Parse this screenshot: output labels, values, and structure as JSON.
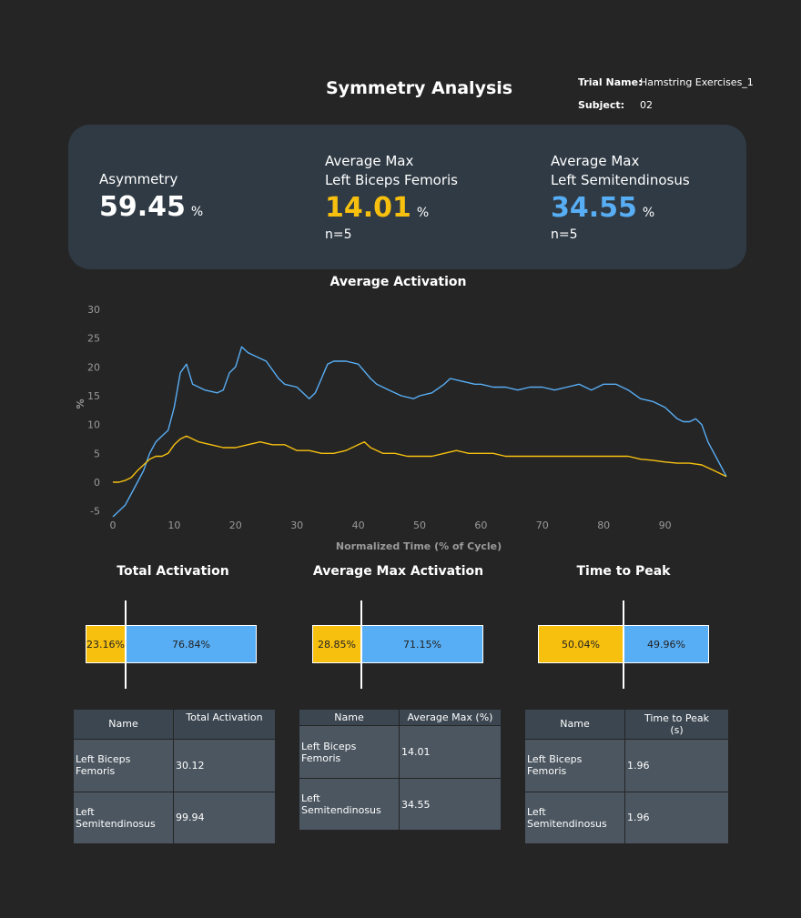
{
  "header": {
    "title": "Symmetry Analysis",
    "trial_label": "Trial Name:",
    "trial_value": "Hamstring Exercises_1",
    "subject_label": "Subject:",
    "subject_value": "02"
  },
  "summary": {
    "asymmetry": {
      "label": "Asymmetry",
      "value": "59.45",
      "unit": "%"
    },
    "left": {
      "label1": "Average Max",
      "label2": "Left Biceps Femoris",
      "value": "14.01",
      "unit": "%",
      "n": "n=5"
    },
    "right": {
      "label1": "Average Max",
      "label2": "Left Semitendinosus",
      "value": "34.55",
      "unit": "%",
      "n": "n=5"
    }
  },
  "colors": {
    "left": "#f7c00f",
    "right": "#58aef5"
  },
  "chart_data": {
    "type": "line",
    "title": "Average Activation",
    "xlabel": "Normalized Time (% of Cycle)",
    "ylabel": "%",
    "xlim": [
      0,
      100
    ],
    "ylim": [
      -6,
      30
    ],
    "xticks": [
      0,
      10,
      20,
      30,
      40,
      50,
      60,
      70,
      80,
      90
    ],
    "yticks": [
      -5,
      0,
      5,
      10,
      15,
      20,
      25,
      30
    ],
    "series": [
      {
        "name": "Left Semitendinosus",
        "color": "#58aef5",
        "x": [
          0,
          2,
          4,
          5,
          6,
          7,
          8,
          9,
          10,
          11,
          12,
          13,
          15,
          17,
          18,
          19,
          20,
          21,
          22,
          23,
          25,
          27,
          28,
          30,
          32,
          33,
          34,
          35,
          36,
          38,
          40,
          42,
          43,
          45,
          47,
          49,
          50,
          52,
          54,
          55,
          57,
          59,
          60,
          62,
          64,
          66,
          68,
          70,
          72,
          74,
          76,
          78,
          80,
          82,
          84,
          86,
          88,
          90,
          91,
          92,
          93,
          94,
          95,
          96,
          97,
          98,
          99,
          100
        ],
        "y": [
          -6,
          -4,
          0,
          2,
          5,
          7,
          8,
          9,
          13,
          19,
          20.5,
          17,
          16,
          15.5,
          16,
          19,
          20,
          23.5,
          22.5,
          22,
          21,
          18,
          17,
          16.5,
          14.5,
          15.5,
          18,
          20.5,
          21,
          21,
          20.5,
          18,
          17,
          16,
          15,
          14.5,
          15,
          15.5,
          17,
          18,
          17.5,
          17,
          17,
          16.5,
          16.5,
          16,
          16.5,
          16.5,
          16,
          16.5,
          17,
          16,
          17,
          17,
          16,
          14.5,
          14,
          13,
          12,
          11,
          10.5,
          10.5,
          11,
          10,
          7,
          5,
          3,
          1
        ]
      },
      {
        "name": "Left Biceps Femoris",
        "color": "#f7c00f",
        "x": [
          0,
          1,
          2,
          3,
          4,
          5,
          6,
          7,
          8,
          9,
          10,
          11,
          12,
          13,
          14,
          16,
          18,
          20,
          22,
          24,
          26,
          28,
          30,
          32,
          34,
          36,
          38,
          40,
          41,
          42,
          44,
          46,
          48,
          50,
          52,
          54,
          56,
          58,
          60,
          62,
          64,
          66,
          68,
          70,
          72,
          74,
          76,
          78,
          80,
          82,
          84,
          86,
          88,
          90,
          92,
          94,
          96,
          98,
          100
        ],
        "y": [
          0,
          0,
          0.3,
          0.8,
          2,
          3,
          4,
          4.5,
          4.5,
          5,
          6.5,
          7.5,
          8,
          7.5,
          7,
          6.5,
          6,
          6,
          6.5,
          7,
          6.5,
          6.5,
          5.5,
          5.5,
          5,
          5,
          5.5,
          6.5,
          7,
          6,
          5,
          5,
          4.5,
          4.5,
          4.5,
          5,
          5.5,
          5,
          5,
          5,
          4.5,
          4.5,
          4.5,
          4.5,
          4.5,
          4.5,
          4.5,
          4.5,
          4.5,
          4.5,
          4.5,
          4,
          3.8,
          3.5,
          3.3,
          3.3,
          3,
          2,
          1
        ]
      }
    ]
  },
  "total_activation": {
    "title": "Total Activation",
    "left_pct": 23.16,
    "right_pct": 76.84,
    "left_label": "23.16%",
    "right_label": "76.84%",
    "table": {
      "headers": [
        "Name",
        "Total Activation"
      ],
      "rows": [
        [
          "Left Biceps Femoris",
          "30.12"
        ],
        [
          "Left Semitendinosus",
          "99.94"
        ]
      ]
    }
  },
  "avg_max_activation": {
    "title": "Average Max Activation",
    "left_pct": 28.85,
    "right_pct": 71.15,
    "left_label": "28.85%",
    "right_label": "71.15%",
    "table": {
      "headers": [
        "Name",
        "Average Max (%)"
      ],
      "rows": [
        [
          "Left Biceps Femoris",
          "14.01"
        ],
        [
          "Left Semitendinosus",
          "34.55"
        ]
      ]
    }
  },
  "time_to_peak": {
    "title": "Time to Peak",
    "left_pct": 50.04,
    "right_pct": 49.96,
    "left_label": "50.04%",
    "right_label": "49.96%",
    "table": {
      "headers": [
        "Name",
        "Time to Peak (s)"
      ],
      "rows": [
        [
          "Left Biceps Femoris",
          "1.96"
        ],
        [
          "Left Semitendinosus",
          "1.96"
        ]
      ]
    }
  }
}
